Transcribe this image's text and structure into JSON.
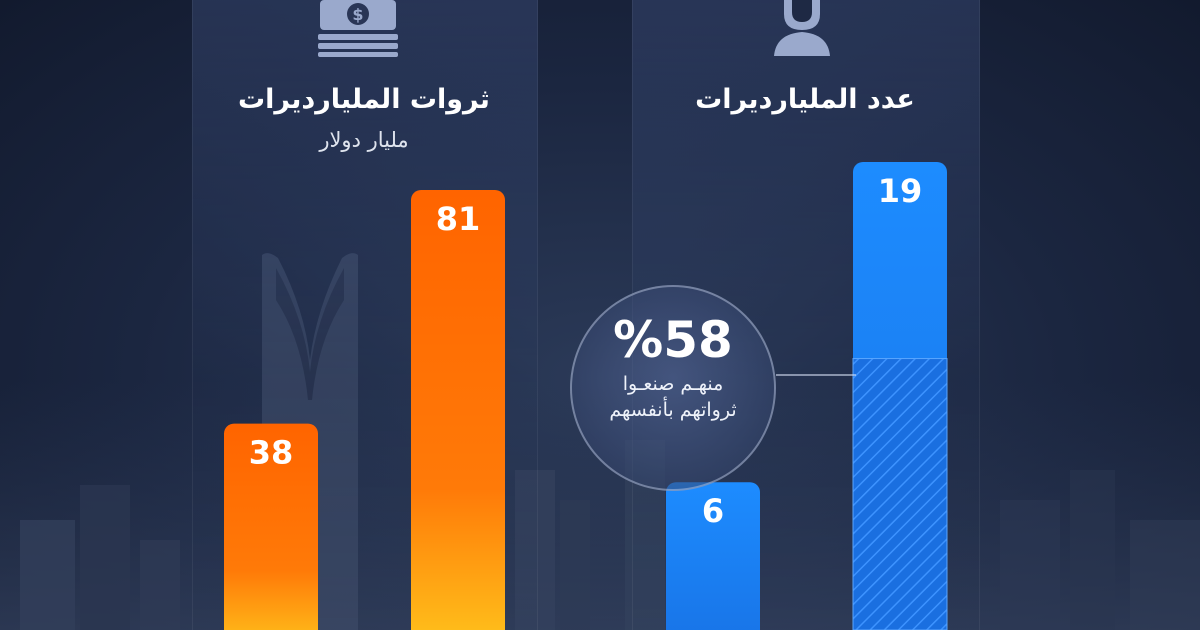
{
  "colors": {
    "wealth_bar": "#ff6a00",
    "wealth_bar_glow": "#ffc21a",
    "count_bar": "#1f8bff",
    "count_bar_dark": "#126fe0"
  },
  "icons": {
    "wealth": "money-stack-icon",
    "count": "person-icon"
  },
  "chart_data": [
    {
      "type": "bar",
      "title": "ثروات المليارديرات",
      "subtitle": "مليار دولار",
      "series": [
        {
          "values": [
            38,
            81
          ]
        }
      ],
      "value_labels": [
        "38",
        "81"
      ]
    },
    {
      "type": "bar",
      "title": "عدد المليارديرات",
      "series": [
        {
          "values": [
            6,
            19
          ]
        }
      ],
      "value_labels": [
        "6",
        "19"
      ],
      "annotation": {
        "percent": "%58",
        "line1": "منهـم صنعـوا",
        "line2": "ثرواتهم بأنفسهم",
        "highlighted_share": 0.58
      }
    }
  ]
}
